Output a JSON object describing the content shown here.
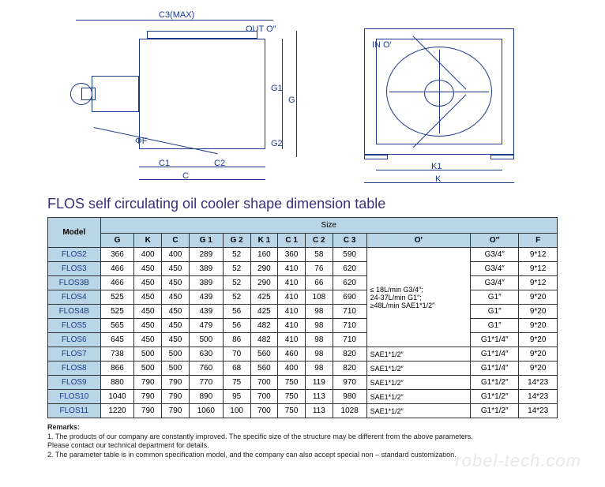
{
  "diagram": {
    "labels_left": {
      "c3max": "C3(MAX)",
      "out_o": "OUT O″",
      "phi_f": "ΦF",
      "c1": "C1",
      "c2": "C2",
      "c": "C",
      "g1": "G1",
      "g2": "G2",
      "g": "G"
    },
    "labels_right": {
      "in_o": "IN O′",
      "k1": "K1",
      "k": "K"
    },
    "line_color": "#1b3a8a"
  },
  "title": "FLOS self circulating oil cooler shape dimension table",
  "table": {
    "size_header": "Size",
    "columns": [
      "Model",
      "G",
      "K",
      "C",
      "G 1",
      "G 2",
      "K 1",
      "C 1",
      "C 2",
      "C 3",
      "O′",
      "O″",
      "F"
    ],
    "rows": [
      {
        "model": "FLOS2",
        "g": "366",
        "k": "400",
        "c": "400",
        "g1": "289",
        "g2": "52",
        "k1": "160",
        "c1": "360",
        "c2": "58",
        "c3": "590",
        "op": "",
        "odp": "G3/4″",
        "f": "9*12"
      },
      {
        "model": "FLOS3",
        "g": "466",
        "k": "450",
        "c": "450",
        "g1": "389",
        "g2": "52",
        "k1": "290",
        "c1": "410",
        "c2": "76",
        "c3": "620",
        "op": "",
        "odp": "G3/4″",
        "f": "9*12"
      },
      {
        "model": "FLOS3B",
        "g": "466",
        "k": "450",
        "c": "450",
        "g1": "389",
        "g2": "52",
        "k1": "290",
        "c1": "410",
        "c2": "66",
        "c3": "620",
        "op": "≤ 18L/min   G3/4″;",
        "odp": "G3/4″",
        "f": "9*12"
      },
      {
        "model": "FLOS4",
        "g": "525",
        "k": "450",
        "c": "450",
        "g1": "439",
        "g2": "52",
        "k1": "425",
        "c1": "410",
        "c2": "108",
        "c3": "690",
        "op": "24-37L/min    G1″;",
        "odp": "G1″",
        "f": "9*20"
      },
      {
        "model": "FLOS4B",
        "g": "525",
        "k": "450",
        "c": "450",
        "g1": "439",
        "g2": "56",
        "k1": "425",
        "c1": "410",
        "c2": "98",
        "c3": "710",
        "op": "≥48L/min  SAE1*1/2″",
        "odp": "G1″",
        "f": "9*20"
      },
      {
        "model": "FLOS5",
        "g": "565",
        "k": "450",
        "c": "450",
        "g1": "479",
        "g2": "56",
        "k1": "482",
        "c1": "410",
        "c2": "98",
        "c3": "710",
        "op": "",
        "odp": "G1″",
        "f": "9*20"
      },
      {
        "model": "FLOS6",
        "g": "645",
        "k": "450",
        "c": "450",
        "g1": "500",
        "g2": "86",
        "k1": "482",
        "c1": "410",
        "c2": "98",
        "c3": "710",
        "op": "",
        "odp": "G1*1/4″",
        "f": "9*20"
      },
      {
        "model": "FLOS7",
        "g": "738",
        "k": "500",
        "c": "500",
        "g1": "630",
        "g2": "70",
        "k1": "560",
        "c1": "460",
        "c2": "98",
        "c3": "820",
        "op": "SAE1*1/2″",
        "odp": "G1*1/4″",
        "f": "9*20"
      },
      {
        "model": "FLOS8",
        "g": "866",
        "k": "500",
        "c": "500",
        "g1": "760",
        "g2": "68",
        "k1": "560",
        "c1": "400",
        "c2": "98",
        "c3": "820",
        "op": "SAE1*1/2″",
        "odp": "G1*1/4″",
        "f": "9*20"
      },
      {
        "model": "FLOS9",
        "g": "880",
        "k": "790",
        "c": "790",
        "g1": "770",
        "g2": "75",
        "k1": "700",
        "c1": "750",
        "c2": "119",
        "c3": "970",
        "op": "SAE1*1/2″",
        "odp": "G1*1/2″",
        "f": "14*23"
      },
      {
        "model": "FLOS10",
        "g": "1040",
        "k": "790",
        "c": "790",
        "g1": "890",
        "g2": "95",
        "k1": "700",
        "c1": "750",
        "c2": "113",
        "c3": "980",
        "op": "SAE1*1/2″",
        "odp": "G1*1/2″",
        "f": "14*23"
      },
      {
        "model": "FLOS11",
        "g": "1220",
        "k": "790",
        "c": "790",
        "g1": "1060",
        "g2": "100",
        "k1": "700",
        "c1": "750",
        "c2": "113",
        "c3": "1028",
        "op": "SAE1*1/2″",
        "odp": "G1*1/2″",
        "f": "14*23"
      }
    ],
    "oprime_rowspan_groups": [
      {
        "start": 0,
        "span": 6,
        "text": "≤ 18L/min   G3/4″;\n24-37L/min    G1″;\n≥48L/min  SAE1*1/2″"
      }
    ],
    "header_bg": "#b9d5e6",
    "model_bg": "#b9d5e6",
    "border_color": "#333333"
  },
  "remarks": {
    "title": "Remarks:",
    "line1": "1. The products of our company are constantly improved. The specific size of the structure may be different from the above parameters.",
    "line1b": "   Please contact our technical department for details.",
    "line2": "2. The parameter table is in common specification model, and the company can also accept special non – standard customization."
  },
  "watermark": "robel-tech.com"
}
